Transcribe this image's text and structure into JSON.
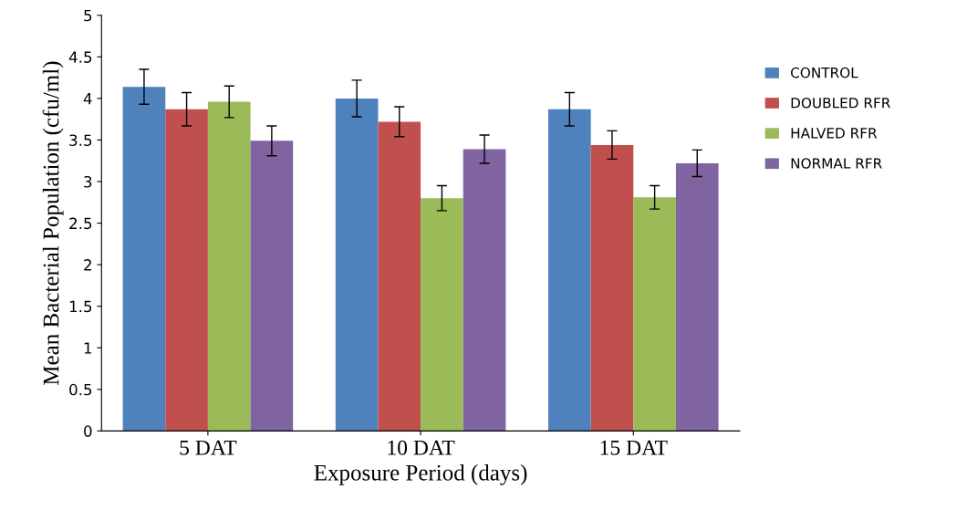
{
  "chart_data": {
    "type": "bar",
    "xlabel": "Exposure Period (days)",
    "ylabel": "Mean Bacterial Population (cfu/ml)",
    "categories": [
      "5 DAT",
      "10 DAT",
      "15 DAT"
    ],
    "series": [
      {
        "name": "CONTROL",
        "color": "#4f81bd",
        "values": [
          4.14,
          4.0,
          3.87
        ],
        "errors": [
          0.21,
          0.22,
          0.2
        ]
      },
      {
        "name": "DOUBLED RFR",
        "color": "#c0504d",
        "values": [
          3.87,
          3.72,
          3.44
        ],
        "errors": [
          0.2,
          0.18,
          0.17
        ]
      },
      {
        "name": "HALVED RFR",
        "color": "#9bbb59",
        "values": [
          3.96,
          2.8,
          2.81
        ],
        "errors": [
          0.19,
          0.15,
          0.14
        ]
      },
      {
        "name": "NORMAL RFR",
        "color": "#8064a2",
        "values": [
          3.49,
          3.39,
          3.22
        ],
        "errors": [
          0.18,
          0.17,
          0.16
        ]
      }
    ],
    "ylim": [
      0,
      5
    ],
    "yticks": [
      0,
      0.5,
      1,
      1.5,
      2,
      2.5,
      3,
      3.5,
      4,
      4.5,
      5
    ],
    "grid": false,
    "legend": "right"
  }
}
